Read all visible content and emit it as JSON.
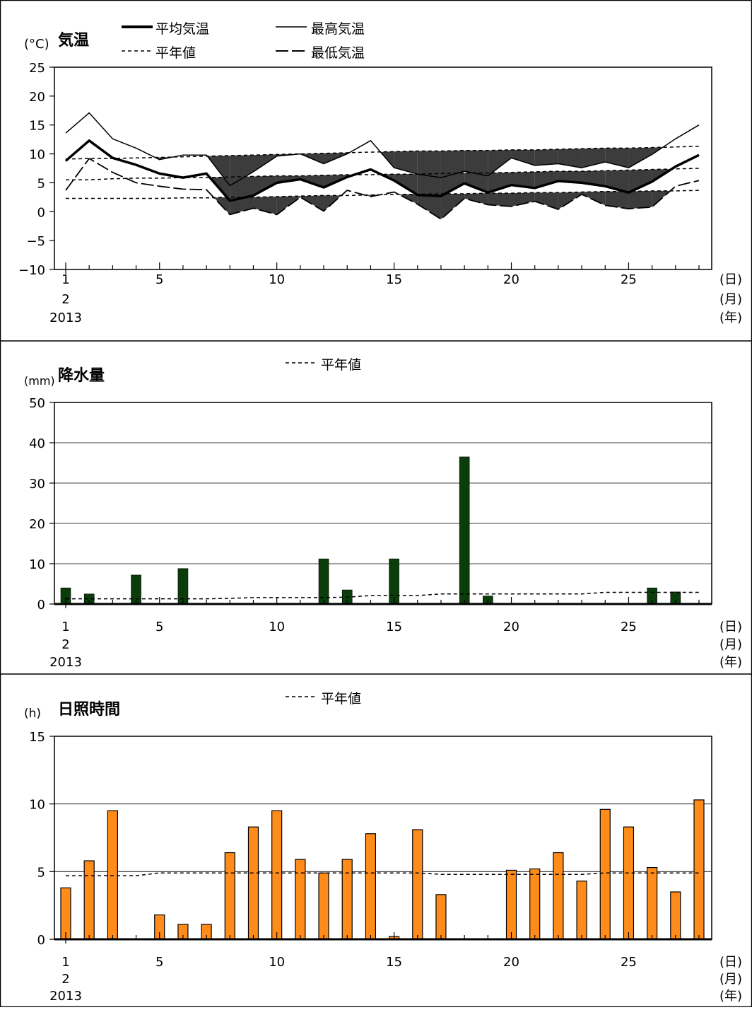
{
  "chart_data": [
    {
      "type": "line",
      "title": "気温",
      "unit": "(°C)",
      "ylim": [
        -10,
        25
      ],
      "yticks": [
        25,
        20,
        15,
        10,
        5,
        0,
        -5,
        -10
      ],
      "x": [
        1,
        2,
        3,
        4,
        5,
        6,
        7,
        8,
        9,
        10,
        11,
        12,
        13,
        14,
        15,
        16,
        17,
        18,
        19,
        20,
        21,
        22,
        23,
        24,
        25,
        26,
        27,
        28
      ],
      "xtick_labels": [
        "1",
        "5",
        "10",
        "15",
        "20",
        "25"
      ],
      "x_month": "2",
      "x_year": "2013",
      "axis_units": [
        "(日)",
        "(月)",
        "(年)"
      ],
      "legend": [
        "平均気温",
        "最高気温",
        "平年値",
        "最低気温"
      ],
      "series": [
        {
          "name": "平均気温",
          "values": [
            8.8,
            12.3,
            9.3,
            8.1,
            6.6,
            5.9,
            6.6,
            1.9,
            2.8,
            5.0,
            5.6,
            4.2,
            6.0,
            7.3,
            5.4,
            2.9,
            2.7,
            4.9,
            3.3,
            4.6,
            4.1,
            5.3,
            5.0,
            4.4,
            3.3,
            5.2,
            7.8,
            9.8
          ]
        },
        {
          "name": "最高気温",
          "values": [
            13.6,
            17.1,
            12.6,
            11.0,
            9.0,
            9.8,
            9.8,
            4.5,
            6.9,
            9.6,
            10.0,
            8.3,
            10.0,
            12.3,
            7.6,
            6.5,
            5.9,
            7.0,
            6.2,
            9.3,
            8.0,
            8.3,
            7.6,
            8.6,
            7.6,
            9.9,
            12.6,
            15.0
          ]
        },
        {
          "name": "最低気温",
          "values": [
            3.7,
            9.2,
            6.8,
            5.0,
            4.4,
            3.9,
            3.8,
            -0.5,
            0.6,
            -0.5,
            2.5,
            0.1,
            3.7,
            2.6,
            3.4,
            1.3,
            -1.3,
            2.3,
            1.2,
            0.9,
            1.8,
            0.4,
            3.0,
            1.1,
            0.5,
            0.8,
            4.4,
            5.4
          ]
        },
        {
          "name": "平年値 (平均)",
          "values": [
            5.5,
            5.5,
            5.7,
            5.8,
            5.8,
            5.9,
            5.9,
            6.0,
            6.1,
            6.2,
            6.2,
            6.3,
            6.4,
            6.4,
            6.5,
            6.5,
            6.6,
            6.7,
            6.7,
            6.8,
            6.9,
            7.0,
            7.0,
            7.1,
            7.2,
            7.3,
            7.4,
            7.5
          ]
        },
        {
          "name": "平年値 (最高)",
          "values": [
            9.1,
            9.2,
            9.2,
            9.3,
            9.4,
            9.5,
            9.6,
            9.7,
            9.8,
            9.9,
            10.0,
            10.1,
            10.2,
            10.3,
            10.4,
            10.5,
            10.5,
            10.6,
            10.6,
            10.7,
            10.7,
            10.8,
            10.9,
            11.0,
            11.0,
            11.1,
            11.2,
            11.3
          ]
        },
        {
          "name": "平年値 (最低)",
          "values": [
            2.3,
            2.3,
            2.3,
            2.3,
            2.3,
            2.4,
            2.4,
            2.5,
            2.5,
            2.6,
            2.7,
            2.8,
            2.8,
            2.9,
            3.0,
            3.0,
            3.1,
            3.1,
            3.2,
            3.2,
            3.3,
            3.3,
            3.4,
            3.5,
            3.5,
            3.6,
            3.6,
            3.7
          ]
        }
      ]
    },
    {
      "type": "bar",
      "title": "降水量",
      "unit": "(mm)",
      "ylim": [
        0,
        50
      ],
      "yticks": [
        50,
        40,
        30,
        20,
        10,
        0
      ],
      "x": [
        1,
        2,
        3,
        4,
        5,
        6,
        7,
        8,
        9,
        10,
        11,
        12,
        13,
        14,
        15,
        16,
        17,
        18,
        19,
        20,
        21,
        22,
        23,
        24,
        25,
        26,
        27,
        28
      ],
      "xtick_labels": [
        "1",
        "5",
        "10",
        "15",
        "20",
        "25"
      ],
      "x_month": "2",
      "x_year": "2013",
      "axis_units": [
        "(日)",
        "(月)",
        "(年)"
      ],
      "legend": [
        "平年値"
      ],
      "color": "#0b3d0b",
      "series": [
        {
          "name": "降水量",
          "values": [
            4.0,
            2.5,
            0,
            7.2,
            0,
            8.8,
            0,
            0,
            0,
            0,
            0,
            11.2,
            3.5,
            0,
            11.2,
            0,
            0,
            36.5,
            2.0,
            0,
            0,
            0,
            0,
            0,
            0,
            4.0,
            3.0,
            0
          ]
        },
        {
          "name": "平年値",
          "values": [
            1.3,
            1.3,
            1.3,
            1.3,
            1.3,
            1.3,
            1.3,
            1.4,
            1.6,
            1.6,
            1.6,
            1.6,
            1.7,
            2.1,
            2.1,
            2.1,
            2.5,
            2.5,
            2.5,
            2.5,
            2.5,
            2.5,
            2.5,
            2.9,
            2.9,
            2.9,
            2.9,
            2.9
          ]
        }
      ]
    },
    {
      "type": "bar",
      "title": "日照時間",
      "unit": "(h)",
      "ylim": [
        0,
        15
      ],
      "yticks": [
        15,
        10,
        5,
        0
      ],
      "x": [
        1,
        2,
        3,
        4,
        5,
        6,
        7,
        8,
        9,
        10,
        11,
        12,
        13,
        14,
        15,
        16,
        17,
        18,
        19,
        20,
        21,
        22,
        23,
        24,
        25,
        26,
        27,
        28
      ],
      "xtick_labels": [
        "1",
        "5",
        "10",
        "15",
        "20",
        "25"
      ],
      "x_month": "2",
      "x_year": "2013",
      "axis_units": [
        "(日)",
        "(月)",
        "(年)"
      ],
      "legend": [
        "平年値"
      ],
      "color": "#ff8c1a",
      "series": [
        {
          "name": "日照時間",
          "values": [
            3.8,
            5.8,
            9.5,
            0,
            1.8,
            1.1,
            1.1,
            6.4,
            8.3,
            9.5,
            5.9,
            4.9,
            5.9,
            7.8,
            0.2,
            8.1,
            3.3,
            0,
            0,
            5.1,
            5.2,
            6.4,
            4.3,
            9.6,
            8.3,
            5.3,
            3.5,
            10.3
          ]
        },
        {
          "name": "平年値",
          "values": [
            4.7,
            4.7,
            4.7,
            4.7,
            4.9,
            4.9,
            4.9,
            4.9,
            4.9,
            4.9,
            4.9,
            4.9,
            4.9,
            4.9,
            4.9,
            4.9,
            4.8,
            4.8,
            4.8,
            4.8,
            4.8,
            4.8,
            4.8,
            4.9,
            4.9,
            4.9,
            4.9,
            4.9
          ]
        }
      ]
    }
  ]
}
